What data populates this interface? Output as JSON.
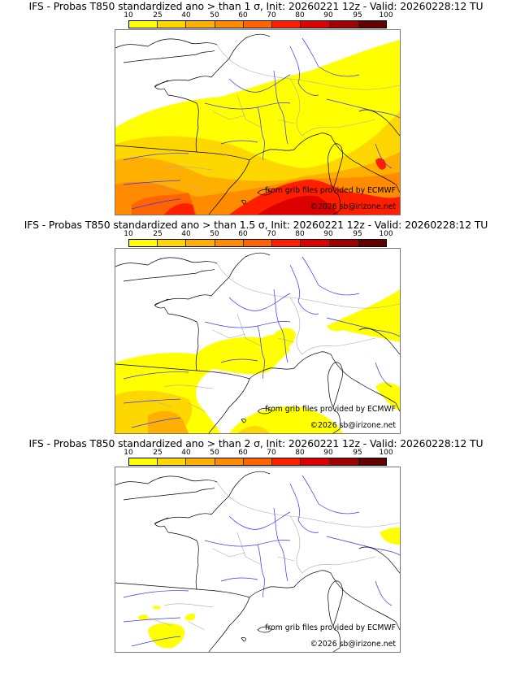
{
  "panels": [
    {
      "title": "IFS - Probas T850  standardized ano > than 1 σ, Init: 20260221 12z - Valid: 20260228:12 TU",
      "threshold": "1 σ",
      "coverage_level": "widespread"
    },
    {
      "title": "IFS - Probas T850  standardized ano > than 1.5 σ, Init: 20260221 12z - Valid: 20260228:12 TU",
      "threshold": "1.5 σ",
      "coverage_level": "moderate"
    },
    {
      "title": "IFS - Probas T850  standardized ano > than 2 σ, Init: 20260221 12z - Valid: 20260228:12 TU",
      "threshold": "2 σ",
      "coverage_level": "sparse"
    }
  ],
  "colorbar": {
    "ticks": [
      "10",
      "25",
      "40",
      "50",
      "60",
      "70",
      "80",
      "90",
      "95",
      "100"
    ],
    "colors": [
      "#ffff00",
      "#ffd700",
      "#ffaf00",
      "#ff8c00",
      "#ff6400",
      "#ff1e00",
      "#dc0000",
      "#a00000",
      "#640000"
    ]
  },
  "credits": {
    "source": "from grib files provided by ECMWF",
    "copyright": "©2026 sb@irizone.net"
  },
  "map_colors": {
    "coast": "#000000",
    "rivers": "#3333ff",
    "borders": "#aaaaaa"
  }
}
